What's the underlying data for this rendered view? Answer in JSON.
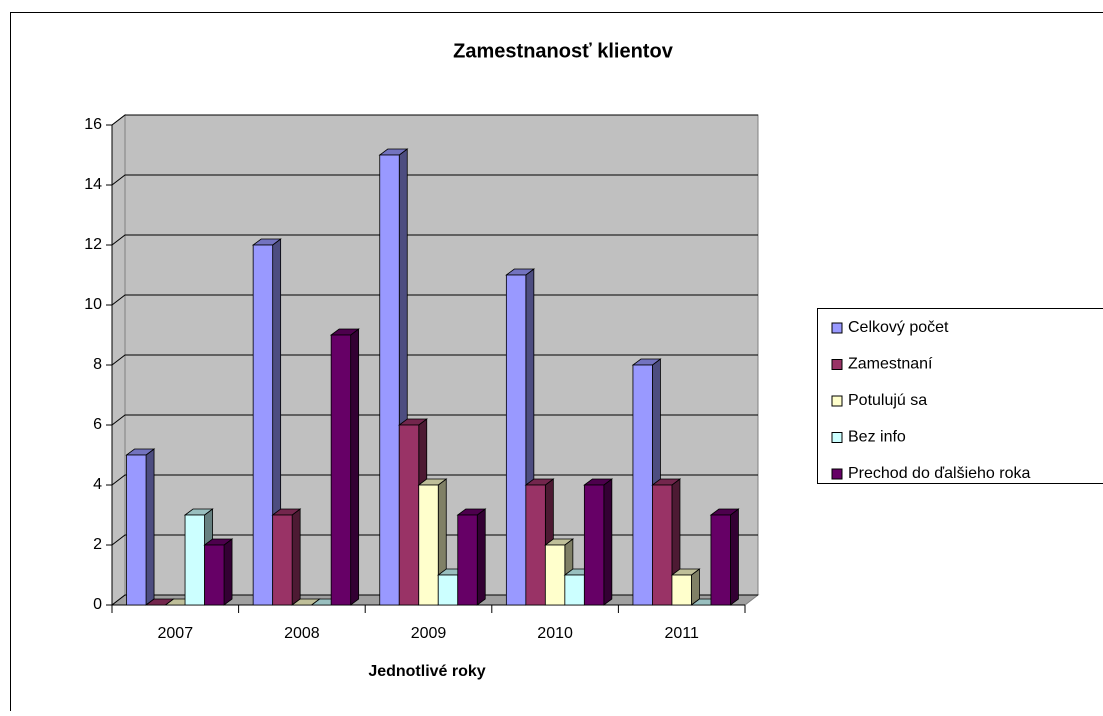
{
  "chart_data": {
    "type": "bar",
    "title": "Zamestnanosť klientov",
    "x_label": "Jednotlivé roky",
    "categories": [
      "2007",
      "2008",
      "2009",
      "2010",
      "2011"
    ],
    "series": [
      {
        "name": "Celkový počet",
        "color": "#9999ff",
        "values": [
          5,
          12,
          15,
          11,
          8
        ]
      },
      {
        "name": "Zamestnaní",
        "color": "#993366",
        "values": [
          0,
          3,
          6,
          4,
          4
        ]
      },
      {
        "name": "Potulujú sa",
        "color": "#ffffcc",
        "values": [
          0,
          0,
          4,
          2,
          1
        ]
      },
      {
        "name": "Bez info",
        "color": "#ccffff",
        "values": [
          3,
          0,
          1,
          1,
          0
        ]
      },
      {
        "name": "Prechod do ďalšieho roka",
        "color": "#660066",
        "values": [
          2,
          9,
          3,
          4,
          3
        ]
      }
    ],
    "ylim": [
      0,
      16
    ],
    "yticks": [
      0,
      2,
      4,
      6,
      8,
      10,
      12,
      14,
      16
    ],
    "grid": true,
    "legend": "right"
  }
}
